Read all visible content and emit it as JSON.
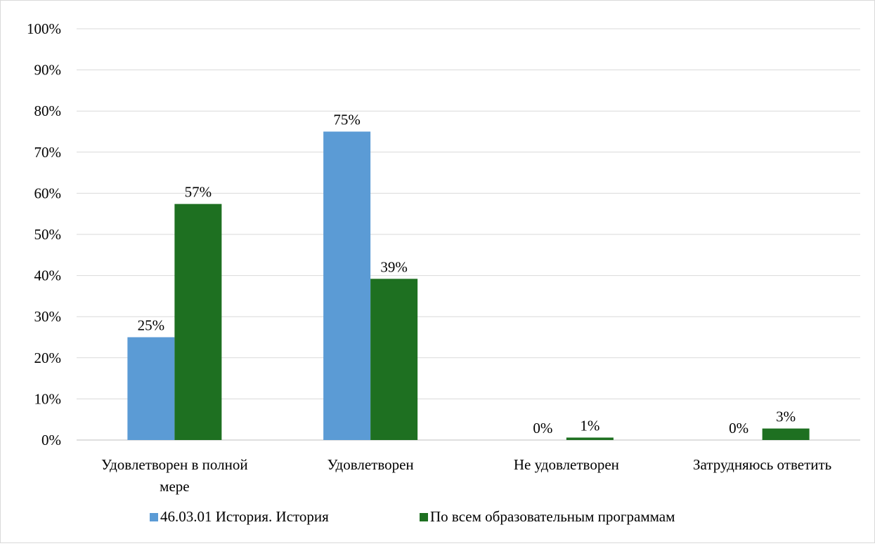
{
  "chart_data": {
    "type": "bar",
    "title": "",
    "xlabel": "",
    "ylabel": "",
    "ylim": [
      0,
      100
    ],
    "yticks": [
      0,
      10,
      20,
      30,
      40,
      50,
      60,
      70,
      80,
      90,
      100
    ],
    "ytick_labels": [
      "0%",
      "10%",
      "20%",
      "30%",
      "40%",
      "50%",
      "60%",
      "70%",
      "80%",
      "90%",
      "100%"
    ],
    "grid": true,
    "legend_position": "bottom",
    "categories": [
      [
        "Удовлетворен в полной",
        "мере"
      ],
      [
        "Удовлетворен"
      ],
      [
        "Не удовлетворен"
      ],
      [
        "Затрудняюсь ответить"
      ]
    ],
    "series": [
      {
        "name": "46.03.01 История. История",
        "color": "#5b9bd5",
        "values": [
          25,
          75,
          0,
          0
        ],
        "labels": [
          "25%",
          "75%",
          "0%",
          "0%"
        ]
      },
      {
        "name": "По всем образовательным программам",
        "color": "#1e7021",
        "values": [
          57.4,
          39.2,
          0.6,
          2.8
        ],
        "labels": [
          "57%",
          "39%",
          "1%",
          "3%"
        ]
      }
    ]
  }
}
